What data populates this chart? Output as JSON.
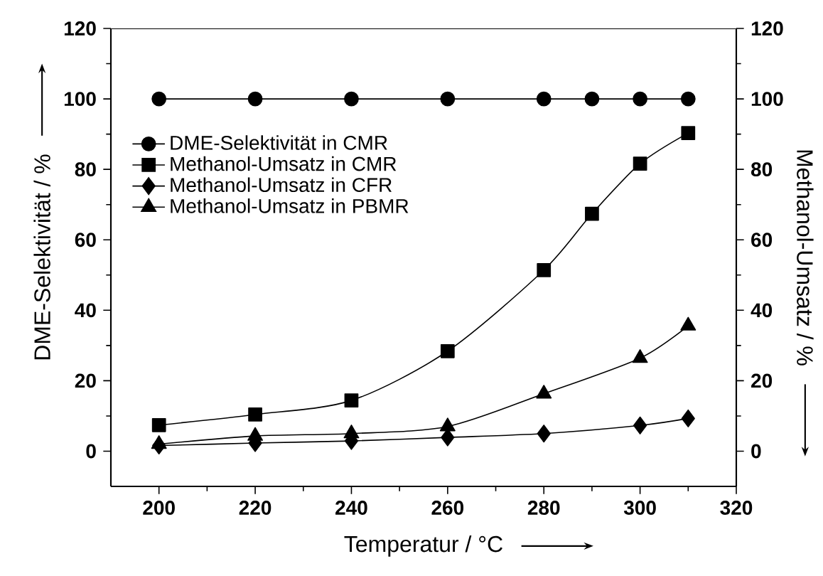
{
  "chart_data": {
    "type": "line",
    "xlabel": "Temperatur / °C",
    "ylabel": "DME-Selektivität / %",
    "y2label": "Methanol-Umsatz / %",
    "xlim": [
      190,
      320
    ],
    "xticks": [
      200,
      220,
      240,
      260,
      280,
      300,
      320
    ],
    "ylim": [
      -10,
      120
    ],
    "yticks": [
      0,
      20,
      40,
      60,
      80,
      100,
      120
    ],
    "y2lim": [
      -10,
      120
    ],
    "y2ticks": [
      0,
      20,
      40,
      60,
      80,
      100,
      120
    ],
    "legend": "left",
    "grid": false,
    "line_style": "solid",
    "series": [
      {
        "name": "DME-Selektivität in CMR",
        "color": "#000000",
        "marker": "circle",
        "x": [
          200,
          220,
          240,
          260,
          280,
          290,
          300,
          310
        ],
        "values": [
          100,
          100,
          100,
          100,
          100,
          100,
          100,
          100
        ]
      },
      {
        "name": "Methanol-Umsatz in CMR",
        "color": "#000000",
        "marker": "square",
        "axis": "y2",
        "x": [
          200,
          220,
          240,
          260,
          280,
          290,
          300,
          310
        ],
        "values": [
          7.4,
          10.4,
          14.4,
          28.4,
          51.4,
          67.4,
          81.6,
          90.3
        ]
      },
      {
        "name": "Methanol-Umsatz in CFR",
        "color": "#000000",
        "marker": "diamond",
        "axis": "y2",
        "x": [
          200,
          220,
          240,
          260,
          280,
          300,
          310
        ],
        "values": [
          1.6,
          2.3,
          2.9,
          3.9,
          5.0,
          7.3,
          9.3
        ]
      },
      {
        "name": "Methanol-Umsatz in PBMR",
        "color": "#000000",
        "marker": "triangle",
        "axis": "y2",
        "x": [
          200,
          220,
          240,
          260,
          280,
          300,
          310
        ],
        "values": [
          2.0,
          4.3,
          5.0,
          7.0,
          16.3,
          26.4,
          35.6
        ]
      }
    ]
  }
}
